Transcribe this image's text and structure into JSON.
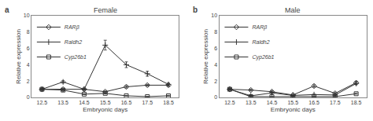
{
  "chart_data": [
    {
      "type": "line",
      "title": "Female",
      "annotations": [
        "a"
      ],
      "xlabel": "Embryonic days",
      "ylabel": "Relative expression",
      "x": [
        12.5,
        13.5,
        14.5,
        15.5,
        16.5,
        17.5,
        18.5
      ],
      "xlim": [
        12,
        19
      ],
      "xticks": [
        12.5,
        13.5,
        14.5,
        15.5,
        16.5,
        17.5,
        18.5
      ],
      "ylim": [
        0,
        10
      ],
      "yticks": [
        0,
        2,
        4,
        6,
        8,
        10
      ],
      "grid": false,
      "legend": "upper left",
      "series": [
        {
          "name": "RARβ",
          "color": "#333333",
          "marker": "diamond",
          "values": [
            1.0,
            1.0,
            1.0,
            0.7,
            1.3,
            1.5,
            1.5
          ],
          "errors": [
            0.08,
            0.08,
            0.08,
            0.08,
            0.15,
            0.1,
            0.1
          ]
        },
        {
          "name": "Raldh2",
          "color": "#333333",
          "marker": "plus",
          "values": [
            1.0,
            1.9,
            1.0,
            6.4,
            4.0,
            2.9,
            1.6
          ],
          "errors": [
            0.1,
            0.15,
            0.12,
            0.6,
            0.35,
            0.3,
            0.15
          ]
        },
        {
          "name": "Cyp26b1",
          "color": "#333333",
          "marker": "square",
          "values": [
            1.0,
            0.9,
            0.4,
            0.5,
            0.2,
            0.1,
            0.2
          ],
          "errors": [
            0.1,
            0.1,
            0.05,
            0.05,
            0.03,
            0.03,
            0.05
          ]
        }
      ]
    },
    {
      "type": "line",
      "title": "Male",
      "annotations": [
        "b"
      ],
      "xlabel": "Embryonic days",
      "ylabel": "Relative expression",
      "x": [
        12.5,
        13.5,
        14.5,
        15.5,
        16.5,
        17.5,
        18.5
      ],
      "xlim": [
        12,
        19
      ],
      "xticks": [
        12.5,
        13.5,
        14.5,
        15.5,
        16.5,
        17.5,
        18.5
      ],
      "ylim": [
        0,
        10
      ],
      "yticks": [
        0,
        2,
        4,
        6,
        8,
        10
      ],
      "grid": false,
      "legend": "upper left",
      "series": [
        {
          "name": "RARβ",
          "color": "#333333",
          "marker": "diamond",
          "values": [
            1.0,
            0.9,
            0.7,
            0.3,
            1.4,
            0.5,
            1.8
          ],
          "errors": [
            0.08,
            0.1,
            0.08,
            0.05,
            0.15,
            0.08,
            0.15
          ]
        },
        {
          "name": "Raldh2",
          "color": "#333333",
          "marker": "plus",
          "values": [
            1.0,
            0.2,
            0.55,
            0.25,
            0.35,
            0.3,
            1.7
          ],
          "errors": [
            0.1,
            0.03,
            0.05,
            0.03,
            0.05,
            0.05,
            0.15
          ]
        },
        {
          "name": "Cyp26b1",
          "color": "#333333",
          "marker": "square",
          "values": [
            1.0,
            0.1,
            0.1,
            0.1,
            0.1,
            0.1,
            0.45
          ],
          "errors": [
            0.05,
            0.02,
            0.02,
            0.02,
            0.02,
            0.02,
            0.05
          ]
        }
      ]
    }
  ]
}
